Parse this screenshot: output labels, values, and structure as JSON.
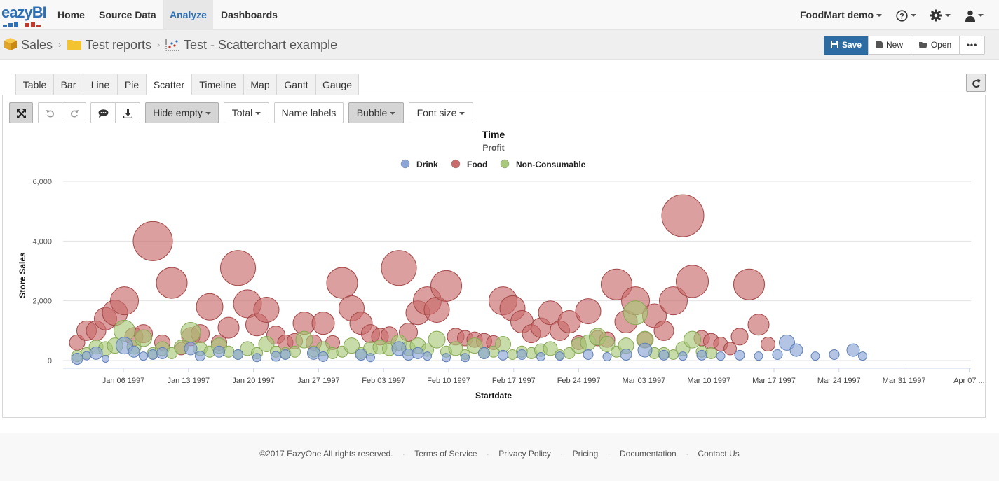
{
  "nav": {
    "logo_text": "eazyBI",
    "items": [
      "Home",
      "Source Data",
      "Analyze",
      "Dashboards"
    ],
    "active": "Analyze",
    "account": "FoodMart demo"
  },
  "breadcrumb": {
    "items": [
      "Sales",
      "Test reports",
      "Test - Scatterchart example"
    ]
  },
  "actions": {
    "save": "Save",
    "new": "New",
    "open": "Open",
    "more": "•••"
  },
  "tabs": [
    "Table",
    "Bar",
    "Line",
    "Pie",
    "Scatter",
    "Timeline",
    "Map",
    "Gantt",
    "Gauge"
  ],
  "active_tab": "Scatter",
  "toolbar": {
    "hide_empty": "Hide empty",
    "total": "Total",
    "name_labels": "Name labels",
    "bubble": "Bubble",
    "font_size": "Font size"
  },
  "colors": {
    "drink": "#8aa5d6",
    "food": "#c96b6b",
    "nonconsumable": "#a9c97a",
    "primary": "#2d6ca2",
    "active_nav": "#2f6fb3"
  },
  "chart_data": {
    "type": "scatter",
    "title": "Time",
    "subtitle": "Profit",
    "xlabel": "Startdate",
    "ylabel": "Store Sales",
    "ylim": [
      0,
      6000
    ],
    "yticks": [
      "0",
      "2,000",
      "4,000",
      "6,000"
    ],
    "xticks": [
      "Jan 06 1997",
      "Jan 13 1997",
      "Jan 20 1997",
      "Jan 27 1997",
      "Feb 03 1997",
      "Feb 10 1997",
      "Feb 17 1997",
      "Feb 24 1997",
      "Mar 03 1997",
      "Mar 10 1997",
      "Mar 17 1997",
      "Mar 24 1997",
      "Mar 31 1997",
      "Apr 07 ..."
    ],
    "legend_position": "top",
    "series": [
      {
        "name": "Drink",
        "points": [
          [
            0,
            60,
            8
          ],
          [
            1,
            160,
            6
          ],
          [
            2,
            250,
            9
          ],
          [
            3,
            60,
            5
          ],
          [
            5,
            500,
            12
          ],
          [
            6,
            300,
            8
          ],
          [
            7,
            150,
            6
          ],
          [
            8,
            200,
            7
          ],
          [
            9,
            250,
            8
          ],
          [
            12,
            400,
            9
          ],
          [
            13,
            150,
            7
          ],
          [
            15,
            300,
            8
          ],
          [
            17,
            200,
            7
          ],
          [
            19,
            100,
            6
          ],
          [
            21,
            140,
            7
          ],
          [
            22,
            200,
            7
          ],
          [
            25,
            250,
            9
          ],
          [
            26,
            130,
            7
          ],
          [
            30,
            200,
            8
          ],
          [
            31,
            100,
            6
          ],
          [
            34,
            400,
            10
          ],
          [
            35,
            200,
            8
          ],
          [
            36,
            250,
            8
          ],
          [
            37,
            150,
            6
          ],
          [
            39,
            100,
            6
          ],
          [
            41,
            100,
            6
          ],
          [
            43,
            250,
            8
          ],
          [
            45,
            180,
            7
          ],
          [
            47,
            200,
            7
          ],
          [
            49,
            130,
            6
          ],
          [
            51,
            150,
            6
          ],
          [
            54,
            200,
            7
          ],
          [
            56,
            130,
            6
          ],
          [
            58,
            200,
            8
          ],
          [
            60,
            350,
            10
          ],
          [
            62,
            180,
            7
          ],
          [
            64,
            150,
            6
          ],
          [
            66,
            180,
            7
          ],
          [
            68,
            150,
            6
          ],
          [
            70,
            180,
            7
          ],
          [
            72,
            150,
            6
          ],
          [
            74,
            200,
            7
          ],
          [
            75,
            600,
            11
          ],
          [
            76,
            350,
            9
          ],
          [
            78,
            150,
            6
          ],
          [
            80,
            200,
            7
          ],
          [
            82,
            350,
            9
          ],
          [
            83,
            150,
            6
          ]
        ]
      },
      {
        "name": "Food",
        "points": [
          [
            0,
            600,
            11
          ],
          [
            1,
            1000,
            14
          ],
          [
            2,
            1000,
            14
          ],
          [
            3,
            1400,
            16
          ],
          [
            4,
            1600,
            18
          ],
          [
            5,
            2000,
            20
          ],
          [
            6,
            800,
            13
          ],
          [
            7,
            900,
            13
          ],
          [
            8,
            4000,
            28
          ],
          [
            9,
            600,
            11
          ],
          [
            10,
            2600,
            22
          ],
          [
            11,
            400,
            9
          ],
          [
            12,
            800,
            13
          ],
          [
            13,
            900,
            13
          ],
          [
            14,
            1800,
            19
          ],
          [
            15,
            600,
            11
          ],
          [
            16,
            1100,
            15
          ],
          [
            17,
            3100,
            25
          ],
          [
            18,
            1900,
            20
          ],
          [
            19,
            1200,
            16
          ],
          [
            20,
            1700,
            18
          ],
          [
            21,
            850,
            13
          ],
          [
            22,
            600,
            11
          ],
          [
            23,
            650,
            11
          ],
          [
            24,
            1250,
            16
          ],
          [
            25,
            600,
            11
          ],
          [
            26,
            1250,
            16
          ],
          [
            27,
            600,
            10
          ],
          [
            28,
            2600,
            22
          ],
          [
            29,
            1750,
            18
          ],
          [
            30,
            1250,
            16
          ],
          [
            31,
            900,
            13
          ],
          [
            32,
            800,
            12
          ],
          [
            33,
            850,
            12
          ],
          [
            34,
            3100,
            25
          ],
          [
            35,
            950,
            13
          ],
          [
            36,
            1600,
            17
          ],
          [
            37,
            2000,
            20
          ],
          [
            38,
            1700,
            18
          ],
          [
            39,
            2500,
            22
          ],
          [
            40,
            800,
            12
          ],
          [
            41,
            750,
            11
          ],
          [
            42,
            700,
            11
          ],
          [
            43,
            650,
            11
          ],
          [
            44,
            600,
            10
          ],
          [
            45,
            2000,
            20
          ],
          [
            46,
            1750,
            18
          ],
          [
            47,
            1300,
            16
          ],
          [
            48,
            900,
            13
          ],
          [
            49,
            1100,
            14
          ],
          [
            50,
            1600,
            17
          ],
          [
            51,
            1000,
            14
          ],
          [
            52,
            1300,
            16
          ],
          [
            53,
            600,
            10
          ],
          [
            54,
            1650,
            18
          ],
          [
            55,
            750,
            11
          ],
          [
            56,
            700,
            11
          ],
          [
            57,
            2550,
            22
          ],
          [
            58,
            1300,
            16
          ],
          [
            59,
            2000,
            20
          ],
          [
            60,
            700,
            11
          ],
          [
            61,
            1500,
            17
          ],
          [
            62,
            1000,
            14
          ],
          [
            63,
            2000,
            20
          ],
          [
            64,
            4850,
            30
          ],
          [
            65,
            2650,
            23
          ],
          [
            66,
            750,
            11
          ],
          [
            67,
            650,
            11
          ],
          [
            68,
            550,
            10
          ],
          [
            69,
            400,
            9
          ],
          [
            70,
            800,
            12
          ],
          [
            71,
            2550,
            22
          ],
          [
            72,
            1200,
            15
          ],
          [
            73,
            550,
            10
          ]
        ]
      },
      {
        "name": "Non-Consumable",
        "points": [
          [
            0,
            150,
            8
          ],
          [
            1,
            250,
            8
          ],
          [
            2,
            450,
            10
          ],
          [
            3,
            400,
            10
          ],
          [
            4,
            500,
            11
          ],
          [
            5,
            1000,
            15
          ],
          [
            6,
            450,
            10
          ],
          [
            7,
            750,
            12
          ],
          [
            8,
            250,
            8
          ],
          [
            9,
            400,
            10
          ],
          [
            10,
            250,
            8
          ],
          [
            11,
            450,
            10
          ],
          [
            12,
            950,
            14
          ],
          [
            13,
            400,
            10
          ],
          [
            14,
            300,
            8
          ],
          [
            15,
            500,
            11
          ],
          [
            16,
            300,
            8
          ],
          [
            17,
            200,
            7
          ],
          [
            18,
            400,
            10
          ],
          [
            19,
            250,
            8
          ],
          [
            20,
            550,
            11
          ],
          [
            21,
            300,
            8
          ],
          [
            22,
            250,
            8
          ],
          [
            23,
            300,
            8
          ],
          [
            24,
            700,
            12
          ],
          [
            25,
            300,
            8
          ],
          [
            26,
            400,
            10
          ],
          [
            27,
            250,
            8
          ],
          [
            28,
            300,
            8
          ],
          [
            29,
            500,
            11
          ],
          [
            30,
            250,
            8
          ],
          [
            31,
            400,
            10
          ],
          [
            32,
            450,
            10
          ],
          [
            33,
            400,
            10
          ],
          [
            34,
            600,
            11
          ],
          [
            35,
            400,
            10
          ],
          [
            36,
            500,
            11
          ],
          [
            37,
            350,
            9
          ],
          [
            38,
            700,
            12
          ],
          [
            39,
            300,
            8
          ],
          [
            40,
            400,
            10
          ],
          [
            41,
            200,
            7
          ],
          [
            42,
            500,
            11
          ],
          [
            43,
            250,
            8
          ],
          [
            44,
            300,
            8
          ],
          [
            45,
            550,
            11
          ],
          [
            46,
            200,
            7
          ],
          [
            47,
            300,
            8
          ],
          [
            48,
            250,
            8
          ],
          [
            49,
            350,
            9
          ],
          [
            50,
            400,
            10
          ],
          [
            51,
            200,
            7
          ],
          [
            52,
            250,
            8
          ],
          [
            53,
            500,
            11
          ],
          [
            54,
            600,
            11
          ],
          [
            55,
            800,
            12
          ],
          [
            56,
            550,
            11
          ],
          [
            57,
            300,
            8
          ],
          [
            58,
            500,
            11
          ],
          [
            59,
            1600,
            17
          ],
          [
            60,
            700,
            12
          ],
          [
            61,
            250,
            8
          ],
          [
            62,
            250,
            8
          ],
          [
            63,
            200,
            7
          ],
          [
            64,
            400,
            10
          ],
          [
            65,
            700,
            12
          ],
          [
            66,
            300,
            8
          ],
          [
            67,
            250,
            8
          ]
        ]
      }
    ]
  },
  "footer": {
    "copyright": "©2017 EazyOne All rights reserved.",
    "links": [
      "Terms of Service",
      "Privacy Policy",
      "Pricing",
      "Documentation",
      "Contact Us"
    ]
  }
}
